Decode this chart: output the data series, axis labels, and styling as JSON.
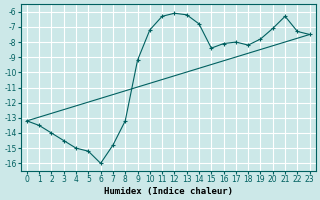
{
  "xlabel": "Humidex (Indice chaleur)",
  "ylabel": "",
  "bg_color": "#cce8e8",
  "line_color": "#006060",
  "grid_color": "#ffffff",
  "xlim": [
    -0.5,
    23.5
  ],
  "ylim": [
    -16.5,
    -5.5
  ],
  "yticks": [
    -6,
    -7,
    -8,
    -9,
    -10,
    -11,
    -12,
    -13,
    -14,
    -15,
    -16
  ],
  "xticks": [
    0,
    1,
    2,
    3,
    4,
    5,
    6,
    7,
    8,
    9,
    10,
    11,
    12,
    13,
    14,
    15,
    16,
    17,
    18,
    19,
    20,
    21,
    22,
    23
  ],
  "line1_x": [
    0,
    1,
    2,
    3,
    4,
    5,
    6,
    7,
    8,
    9,
    10,
    11,
    12,
    13,
    14,
    15,
    16,
    17,
    18,
    19,
    20,
    21,
    22,
    23
  ],
  "line1_y": [
    -13.2,
    -13.5,
    -14.0,
    -14.5,
    -15.0,
    -15.2,
    -16.0,
    -14.8,
    -13.2,
    -9.2,
    -7.2,
    -6.3,
    -6.1,
    -6.2,
    -6.8,
    -8.4,
    -8.1,
    -8.0,
    -8.2,
    -7.8,
    -7.1,
    -6.3,
    -7.3,
    -7.5
  ],
  "line2_x": [
    0,
    23
  ],
  "line2_y": [
    -13.2,
    -7.5
  ],
  "marker": "+"
}
